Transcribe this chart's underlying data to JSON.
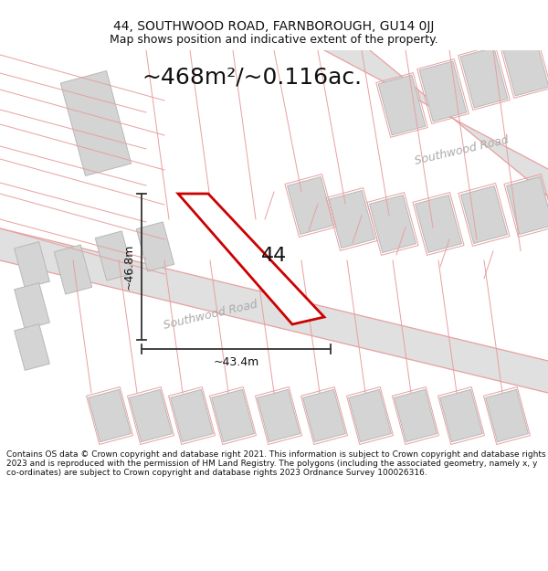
{
  "title_line1": "44, SOUTHWOOD ROAD, FARNBOROUGH, GU14 0JJ",
  "title_line2": "Map shows position and indicative extent of the property.",
  "area_text": "~468m²/~0.116ac.",
  "label_44": "44",
  "dim_height": "~46.8m",
  "dim_width": "~43.4m",
  "road_label_lower": "Southwood Road",
  "road_label_upper": "Southwood Road",
  "footer_text": "Contains OS data © Crown copyright and database right 2021. This information is subject to Crown copyright and database rights 2023 and is reproduced with the permission of HM Land Registry. The polygons (including the associated geometry, namely x, y co-ordinates) are subject to Crown copyright and database rights 2023 Ordnance Survey 100026316.",
  "bg_color": "#ffffff",
  "map_bg": "#f5f5f5",
  "road_fill": "#e0e0e0",
  "building_fill": "#d4d4d4",
  "building_stroke": "#b8b8b8",
  "road_line_color": "#e8a0a0",
  "plot_fill": "#ffffff",
  "plot_stroke": "#cc0000",
  "dim_line_color": "#333333",
  "title_color": "#111111",
  "footer_color": "#111111",
  "area_text_color": "#111111",
  "road_label_color": "#aaaaaa",
  "title_fontsize": 10,
  "subtitle_fontsize": 9,
  "area_fontsize": 18,
  "label44_fontsize": 16,
  "dim_fontsize": 9,
  "road_fontsize": 9,
  "footer_fontsize": 6.5
}
